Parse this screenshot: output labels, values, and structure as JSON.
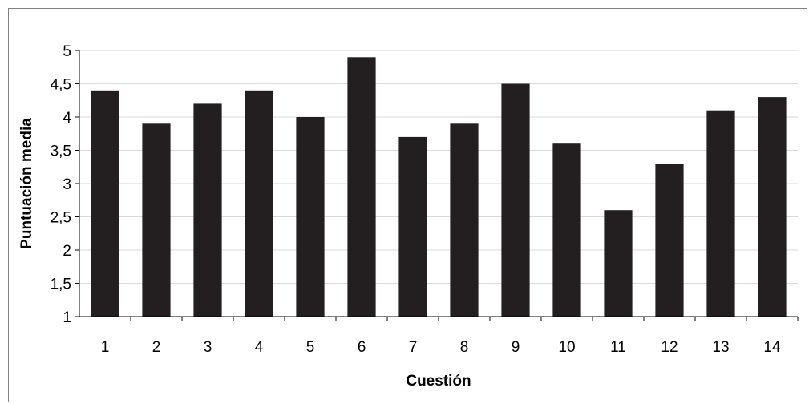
{
  "chart_data": {
    "type": "bar",
    "categories": [
      "1",
      "2",
      "3",
      "4",
      "5",
      "6",
      "7",
      "8",
      "9",
      "10",
      "11",
      "12",
      "13",
      "14"
    ],
    "values": [
      4.4,
      3.9,
      4.2,
      4.4,
      4.0,
      4.9,
      3.7,
      3.9,
      4.5,
      3.6,
      2.6,
      3.3,
      4.1,
      4.3
    ],
    "xlabel": "Cuestión",
    "ylabel": "Puntuación media",
    "ylim": [
      1,
      5
    ],
    "yticks": [
      "1",
      "1,5",
      "2",
      "2,5",
      "3",
      "3,5",
      "4",
      "4,5",
      "5"
    ],
    "grid": true,
    "bar_color": "#231f20",
    "grid_color": "#d9d9d9"
  }
}
